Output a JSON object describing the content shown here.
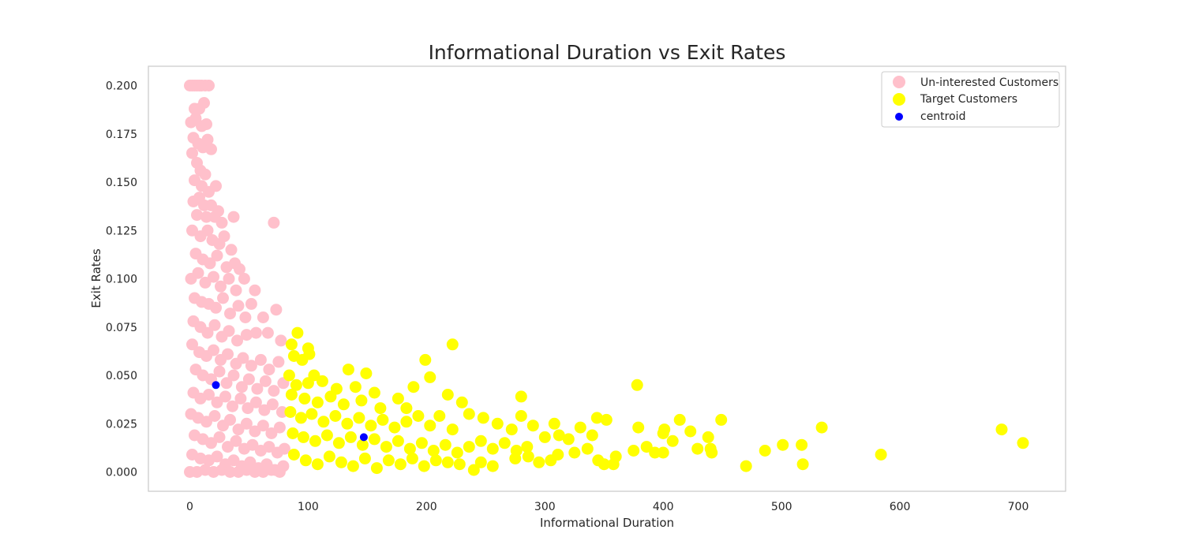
{
  "chart_data": {
    "type": "scatter",
    "title": "Informational Duration vs Exit Rates",
    "xlabel": "Informational Duration",
    "ylabel": "Exit Rates",
    "xlim": [
      -35,
      740
    ],
    "ylim": [
      -0.01,
      0.21
    ],
    "xticks": [
      "0",
      "100",
      "200",
      "300",
      "400",
      "500",
      "600",
      "700"
    ],
    "xtick_values": [
      0,
      100,
      200,
      300,
      400,
      500,
      600,
      700
    ],
    "yticks": [
      "0.000",
      "0.025",
      "0.050",
      "0.075",
      "0.100",
      "0.125",
      "0.150",
      "0.175",
      "0.200"
    ],
    "ytick_values": [
      0,
      0.025,
      0.05,
      0.075,
      0.1,
      0.125,
      0.15,
      0.175,
      0.2
    ],
    "grid": false,
    "legend_position": "top-right",
    "series": [
      {
        "name": "Un-interested Customers",
        "color": "#FFC0CB",
        "marker_size": "large",
        "points": [
          [
            0,
            0.2
          ],
          [
            2,
            0.2
          ],
          [
            4,
            0.2
          ],
          [
            6,
            0.2
          ],
          [
            8,
            0.2
          ],
          [
            10,
            0.2
          ],
          [
            13,
            0.2
          ],
          [
            16,
            0.2
          ],
          [
            4,
            0.188
          ],
          [
            8,
            0.188
          ],
          [
            12,
            0.191
          ],
          [
            1,
            0.181
          ],
          [
            5,
            0.183
          ],
          [
            10,
            0.179
          ],
          [
            14,
            0.18
          ],
          [
            3,
            0.173
          ],
          [
            7,
            0.17
          ],
          [
            11,
            0.168
          ],
          [
            15,
            0.172
          ],
          [
            18,
            0.167
          ],
          [
            2,
            0.165
          ],
          [
            6,
            0.16
          ],
          [
            9,
            0.156
          ],
          [
            13,
            0.154
          ],
          [
            4,
            0.151
          ],
          [
            10,
            0.148
          ],
          [
            16,
            0.145
          ],
          [
            22,
            0.148
          ],
          [
            3,
            0.14
          ],
          [
            8,
            0.142
          ],
          [
            12,
            0.138
          ],
          [
            18,
            0.138
          ],
          [
            24,
            0.135
          ],
          [
            6,
            0.133
          ],
          [
            14,
            0.132
          ],
          [
            21,
            0.132
          ],
          [
            27,
            0.129
          ],
          [
            37,
            0.132
          ],
          [
            71,
            0.129
          ],
          [
            2,
            0.125
          ],
          [
            9,
            0.122
          ],
          [
            15,
            0.125
          ],
          [
            19,
            0.12
          ],
          [
            25,
            0.118
          ],
          [
            29,
            0.122
          ],
          [
            35,
            0.115
          ],
          [
            5,
            0.113
          ],
          [
            11,
            0.11
          ],
          [
            17,
            0.108
          ],
          [
            23,
            0.112
          ],
          [
            31,
            0.106
          ],
          [
            38,
            0.108
          ],
          [
            42,
            0.105
          ],
          [
            1,
            0.1
          ],
          [
            7,
            0.103
          ],
          [
            13,
            0.098
          ],
          [
            20,
            0.101
          ],
          [
            26,
            0.096
          ],
          [
            33,
            0.1
          ],
          [
            39,
            0.094
          ],
          [
            46,
            0.1
          ],
          [
            55,
            0.094
          ],
          [
            4,
            0.09
          ],
          [
            10,
            0.088
          ],
          [
            16,
            0.087
          ],
          [
            22,
            0.085
          ],
          [
            28,
            0.09
          ],
          [
            34,
            0.082
          ],
          [
            41,
            0.086
          ],
          [
            47,
            0.08
          ],
          [
            52,
            0.087
          ],
          [
            62,
            0.08
          ],
          [
            73,
            0.084
          ],
          [
            3,
            0.078
          ],
          [
            9,
            0.075
          ],
          [
            15,
            0.072
          ],
          [
            21,
            0.076
          ],
          [
            27,
            0.07
          ],
          [
            33,
            0.073
          ],
          [
            40,
            0.068
          ],
          [
            48,
            0.071
          ],
          [
            56,
            0.072
          ],
          [
            66,
            0.072
          ],
          [
            77,
            0.068
          ],
          [
            2,
            0.066
          ],
          [
            8,
            0.062
          ],
          [
            14,
            0.06
          ],
          [
            20,
            0.063
          ],
          [
            26,
            0.058
          ],
          [
            32,
            0.061
          ],
          [
            39,
            0.056
          ],
          [
            45,
            0.059
          ],
          [
            52,
            0.055
          ],
          [
            60,
            0.058
          ],
          [
            67,
            0.053
          ],
          [
            75,
            0.057
          ],
          [
            5,
            0.053
          ],
          [
            11,
            0.05
          ],
          [
            18,
            0.048
          ],
          [
            25,
            0.052
          ],
          [
            31,
            0.046
          ],
          [
            37,
            0.05
          ],
          [
            44,
            0.044
          ],
          [
            50,
            0.048
          ],
          [
            57,
            0.043
          ],
          [
            64,
            0.047
          ],
          [
            71,
            0.042
          ],
          [
            79,
            0.046
          ],
          [
            3,
            0.041
          ],
          [
            9,
            0.038
          ],
          [
            16,
            0.04
          ],
          [
            23,
            0.036
          ],
          [
            30,
            0.039
          ],
          [
            36,
            0.034
          ],
          [
            43,
            0.038
          ],
          [
            49,
            0.033
          ],
          [
            56,
            0.036
          ],
          [
            63,
            0.032
          ],
          [
            70,
            0.035
          ],
          [
            78,
            0.031
          ],
          [
            1,
            0.03
          ],
          [
            7,
            0.028
          ],
          [
            14,
            0.026
          ],
          [
            21,
            0.029
          ],
          [
            28,
            0.024
          ],
          [
            34,
            0.027
          ],
          [
            41,
            0.022
          ],
          [
            48,
            0.025
          ],
          [
            55,
            0.021
          ],
          [
            62,
            0.024
          ],
          [
            69,
            0.02
          ],
          [
            76,
            0.023
          ],
          [
            4,
            0.019
          ],
          [
            11,
            0.017
          ],
          [
            18,
            0.015
          ],
          [
            25,
            0.018
          ],
          [
            32,
            0.013
          ],
          [
            39,
            0.016
          ],
          [
            46,
            0.012
          ],
          [
            53,
            0.014
          ],
          [
            60,
            0.011
          ],
          [
            67,
            0.013
          ],
          [
            74,
            0.01
          ],
          [
            80,
            0.012
          ],
          [
            2,
            0.009
          ],
          [
            9,
            0.007
          ],
          [
            16,
            0.006
          ],
          [
            23,
            0.008
          ],
          [
            30,
            0.004
          ],
          [
            37,
            0.006
          ],
          [
            44,
            0.003
          ],
          [
            51,
            0.005
          ],
          [
            58,
            0.002
          ],
          [
            65,
            0.004
          ],
          [
            72,
            0.001
          ],
          [
            79,
            0.003
          ],
          [
            0,
            0
          ],
          [
            6,
            0
          ],
          [
            13,
            0.001
          ],
          [
            20,
            0
          ],
          [
            27,
            0.001
          ],
          [
            34,
            0
          ],
          [
            41,
            0
          ],
          [
            48,
            0.001
          ],
          [
            55,
            0
          ],
          [
            62,
            0
          ],
          [
            69,
            0.001
          ],
          [
            76,
            0
          ]
        ]
      },
      {
        "name": "Target Customers",
        "color": "#FFFF00",
        "marker_size": "large",
        "points": [
          [
            91,
            0.072
          ],
          [
            86,
            0.066
          ],
          [
            100,
            0.064
          ],
          [
            101,
            0.061
          ],
          [
            88,
            0.06
          ],
          [
            95,
            0.058
          ],
          [
            84,
            0.05
          ],
          [
            105,
            0.05
          ],
          [
            134,
            0.053
          ],
          [
            149,
            0.051
          ],
          [
            90,
            0.045
          ],
          [
            100,
            0.046
          ],
          [
            112,
            0.047
          ],
          [
            124,
            0.043
          ],
          [
            140,
            0.044
          ],
          [
            156,
            0.041
          ],
          [
            86,
            0.04
          ],
          [
            97,
            0.038
          ],
          [
            108,
            0.036
          ],
          [
            119,
            0.039
          ],
          [
            130,
            0.035
          ],
          [
            145,
            0.037
          ],
          [
            161,
            0.033
          ],
          [
            176,
            0.038
          ],
          [
            183,
            0.033
          ],
          [
            189,
            0.044
          ],
          [
            199,
            0.058
          ],
          [
            203,
            0.049
          ],
          [
            222,
            0.066
          ],
          [
            218,
            0.04
          ],
          [
            230,
            0.036
          ],
          [
            85,
            0.031
          ],
          [
            94,
            0.028
          ],
          [
            103,
            0.03
          ],
          [
            113,
            0.026
          ],
          [
            123,
            0.029
          ],
          [
            133,
            0.025
          ],
          [
            143,
            0.028
          ],
          [
            153,
            0.024
          ],
          [
            163,
            0.027
          ],
          [
            173,
            0.023
          ],
          [
            183,
            0.026
          ],
          [
            193,
            0.029
          ],
          [
            203,
            0.024
          ],
          [
            211,
            0.029
          ],
          [
            222,
            0.022
          ],
          [
            236,
            0.03
          ],
          [
            248,
            0.028
          ],
          [
            260,
            0.025
          ],
          [
            272,
            0.022
          ],
          [
            280,
            0.029
          ],
          [
            280,
            0.039
          ],
          [
            290,
            0.024
          ],
          [
            308,
            0.025
          ],
          [
            87,
            0.02
          ],
          [
            96,
            0.018
          ],
          [
            106,
            0.016
          ],
          [
            116,
            0.019
          ],
          [
            126,
            0.015
          ],
          [
            136,
            0.018
          ],
          [
            146,
            0.014
          ],
          [
            156,
            0.017
          ],
          [
            166,
            0.013
          ],
          [
            176,
            0.016
          ],
          [
            186,
            0.012
          ],
          [
            196,
            0.015
          ],
          [
            206,
            0.011
          ],
          [
            216,
            0.014
          ],
          [
            226,
            0.01
          ],
          [
            236,
            0.013
          ],
          [
            246,
            0.016
          ],
          [
            256,
            0.012
          ],
          [
            266,
            0.015
          ],
          [
            276,
            0.011
          ],
          [
            285,
            0.013
          ],
          [
            300,
            0.018
          ],
          [
            312,
            0.019
          ],
          [
            320,
            0.017
          ],
          [
            330,
            0.023
          ],
          [
            336,
            0.012
          ],
          [
            340,
            0.019
          ],
          [
            344,
            0.028
          ],
          [
            352,
            0.027
          ],
          [
            88,
            0.009
          ],
          [
            98,
            0.006
          ],
          [
            108,
            0.004
          ],
          [
            118,
            0.008
          ],
          [
            128,
            0.005
          ],
          [
            138,
            0.003
          ],
          [
            148,
            0.007
          ],
          [
            158,
            0.002
          ],
          [
            168,
            0.006
          ],
          [
            178,
            0.004
          ],
          [
            188,
            0.007
          ],
          [
            198,
            0.003
          ],
          [
            208,
            0.006
          ],
          [
            218,
            0.005
          ],
          [
            228,
            0.004
          ],
          [
            240,
            0.001
          ],
          [
            246,
            0.005
          ],
          [
            256,
            0.003
          ],
          [
            275,
            0.007
          ],
          [
            286,
            0.008
          ],
          [
            295,
            0.005
          ],
          [
            305,
            0.006
          ],
          [
            311,
            0.009
          ],
          [
            325,
            0.01
          ],
          [
            345,
            0.006
          ],
          [
            350,
            0.004
          ],
          [
            358,
            0.004
          ],
          [
            360,
            0.008
          ],
          [
            375,
            0.011
          ],
          [
            378,
            0.045
          ],
          [
            379,
            0.023
          ],
          [
            386,
            0.013
          ],
          [
            393,
            0.01
          ],
          [
            400,
            0.01
          ],
          [
            400,
            0.02
          ],
          [
            401,
            0.022
          ],
          [
            408,
            0.016
          ],
          [
            414,
            0.027
          ],
          [
            423,
            0.021
          ],
          [
            429,
            0.012
          ],
          [
            438,
            0.018
          ],
          [
            440,
            0.012
          ],
          [
            441,
            0.01
          ],
          [
            449,
            0.027
          ],
          [
            470,
            0.003
          ],
          [
            486,
            0.011
          ],
          [
            501,
            0.014
          ],
          [
            517,
            0.014
          ],
          [
            518,
            0.004
          ],
          [
            534,
            0.023
          ],
          [
            584,
            0.009
          ],
          [
            686,
            0.022
          ],
          [
            704,
            0.015
          ]
        ]
      },
      {
        "name": "centroid",
        "color": "#0000FF",
        "marker_size": "small",
        "points": [
          [
            22,
            0.045
          ],
          [
            147,
            0.018
          ]
        ]
      }
    ]
  }
}
